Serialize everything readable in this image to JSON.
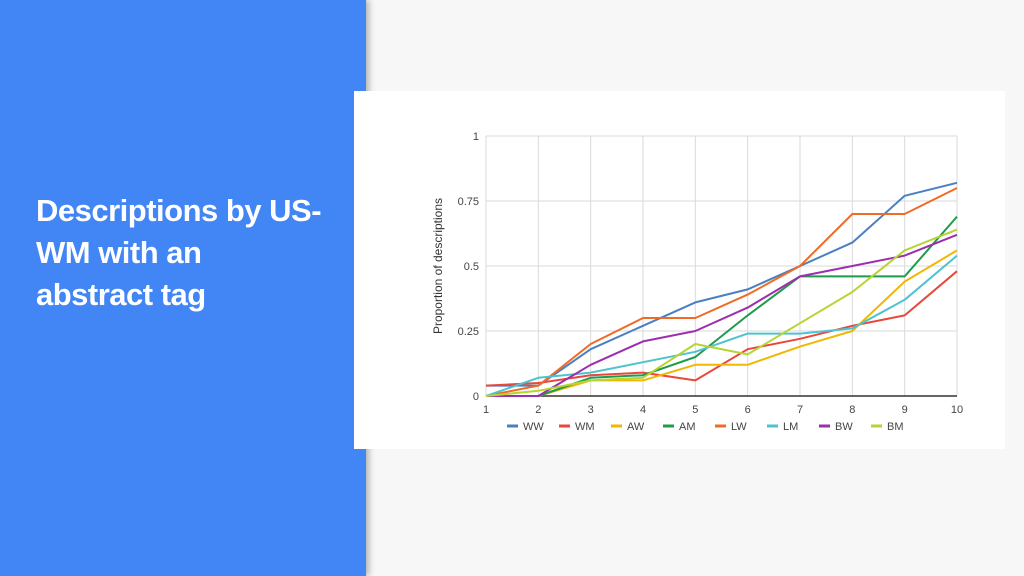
{
  "slide": {
    "title": "Descriptions by US-\nWM with an\nabstract tag",
    "panel_color": "#4285f4"
  },
  "chart_data": {
    "type": "line",
    "title": "",
    "xlabel": "",
    "ylabel": "Proportion of descriptions",
    "x": [
      1,
      2,
      3,
      4,
      5,
      6,
      7,
      8,
      9,
      10
    ],
    "xlim": [
      1,
      10
    ],
    "ylim": [
      0,
      1
    ],
    "yticks": [
      0,
      0.25,
      0.5,
      0.75,
      1
    ],
    "ytick_labels": [
      "0",
      "0.25",
      "0.5",
      "0.75",
      "1"
    ],
    "grid": true,
    "legend_position": "bottom",
    "series": [
      {
        "name": "WW",
        "color": "#4a7fc1",
        "values": [
          0.04,
          0.04,
          0.18,
          0.27,
          0.36,
          0.41,
          0.5,
          0.59,
          0.77,
          0.82
        ]
      },
      {
        "name": "WM",
        "color": "#e8473c",
        "values": [
          0.04,
          0.05,
          0.08,
          0.09,
          0.06,
          0.18,
          0.22,
          0.27,
          0.31,
          0.48
        ]
      },
      {
        "name": "AW",
        "color": "#f2b705",
        "values": [
          0.0,
          0.0,
          0.06,
          0.06,
          0.12,
          0.12,
          0.19,
          0.25,
          0.44,
          0.56
        ]
      },
      {
        "name": "AM",
        "color": "#1e9b4b",
        "values": [
          0.0,
          0.0,
          0.07,
          0.08,
          0.15,
          0.31,
          0.46,
          0.46,
          0.46,
          0.69
        ]
      },
      {
        "name": "LW",
        "color": "#f06b26",
        "values": [
          0.0,
          0.04,
          0.2,
          0.3,
          0.3,
          0.39,
          0.5,
          0.7,
          0.7,
          0.8
        ]
      },
      {
        "name": "LM",
        "color": "#4ec3d0",
        "values": [
          0.0,
          0.07,
          0.09,
          0.13,
          0.17,
          0.24,
          0.24,
          0.26,
          0.37,
          0.54
        ]
      },
      {
        "name": "BW",
        "color": "#9b2fae",
        "values": [
          0.0,
          0.0,
          0.12,
          0.21,
          0.25,
          0.34,
          0.46,
          0.5,
          0.54,
          0.62
        ]
      },
      {
        "name": "BM",
        "color": "#b7d433",
        "values": [
          0.0,
          0.02,
          0.06,
          0.07,
          0.2,
          0.16,
          0.28,
          0.4,
          0.56,
          0.64
        ]
      }
    ]
  }
}
